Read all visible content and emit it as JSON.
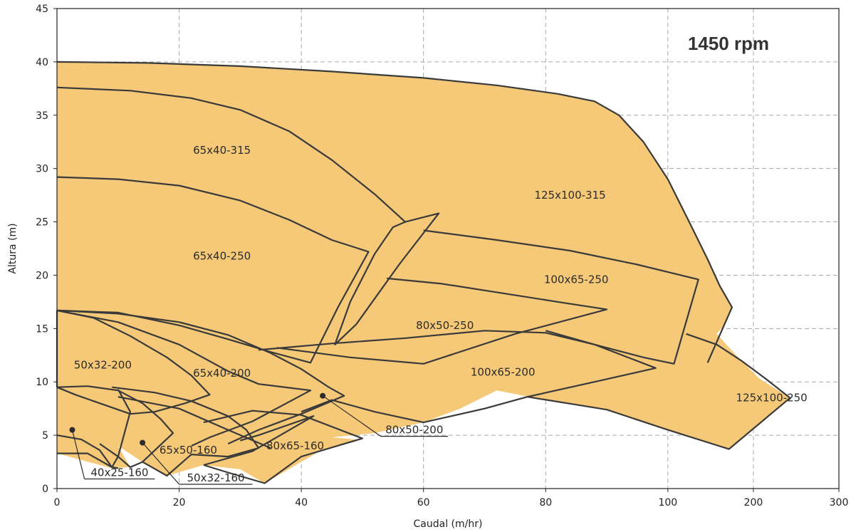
{
  "chart_data": {
    "type": "area",
    "annotation": "1450 rpm",
    "xlabel": "Caudal (m/hr)",
    "ylabel": "Altura (m)",
    "ylim": [
      0,
      45
    ],
    "yticks": [
      "0",
      "5",
      "10",
      "15",
      "20",
      "25",
      "30",
      "35",
      "40",
      "45"
    ],
    "xticks": [
      "0",
      "20",
      "40",
      "60",
      "80",
      "100",
      "200",
      "300"
    ],
    "xtick_positions": [
      0,
      20,
      40,
      60,
      80,
      100,
      114,
      128
    ],
    "xlim_linear": [
      0,
      128
    ],
    "grid": true,
    "colors": {
      "fill": "#f5c977",
      "stroke": "#3a3a3a",
      "grid": "#a8a8a8"
    },
    "regions": [
      {
        "name": "125x100-315",
        "points": [
          [
            0,
            40
          ],
          [
            20,
            39.8
          ],
          [
            40,
            39.3
          ],
          [
            60,
            38.5
          ],
          [
            80,
            37.5
          ],
          [
            90,
            36.5
          ],
          [
            94,
            35
          ],
          [
            100,
            31
          ],
          [
            104,
            26
          ],
          [
            108,
            21
          ],
          [
            110.5,
            17
          ],
          [
            106.5,
            11.8
          ],
          [
            109,
            14
          ],
          [
            111,
            17
          ],
          [
            104,
            26
          ],
          [
            96,
            29.5
          ],
          [
            92,
            31
          ],
          [
            0,
            0
          ]
        ]
      }
    ],
    "series": [
      {
        "name": "125x100-315",
        "points": [
          [
            0,
            40
          ],
          [
            30,
            39.6
          ],
          [
            60,
            38.5
          ],
          [
            80,
            37.2
          ],
          [
            88,
            36.2
          ],
          [
            92,
            34
          ],
          [
            97,
            30.5
          ],
          [
            102,
            25
          ],
          [
            106,
            20
          ],
          [
            110.5,
            17
          ],
          [
            106.5,
            11.8
          ],
          [
            103,
            13
          ],
          [
            98,
            14.8
          ],
          [
            97,
            13
          ],
          [
            101,
            11.7
          ],
          [
            106,
            16.5
          ],
          [
            91.5,
            30
          ],
          [
            95,
            27
          ],
          [
            60,
            28
          ],
          [
            60,
            24
          ],
          [
            52,
            21
          ],
          [
            48,
            18
          ],
          [
            43,
            13.5
          ],
          [
            46,
            18
          ],
          [
            52,
            21
          ],
          [
            60,
            25.8
          ],
          [
            63,
            25.8
          ],
          [
            56,
            26
          ],
          [
            60,
            24
          ],
          [
            52,
            19.7
          ],
          [
            60,
            24
          ],
          [
            64,
            27
          ],
          [
            60,
            26
          ],
          [
            0,
            40
          ]
        ]
      },
      {
        "name": "125x100-250",
        "points": [
          [
            78,
            8.5
          ],
          [
            88,
            10
          ],
          [
            95,
            11.5
          ],
          [
            101,
            13
          ],
          [
            105,
            15
          ],
          [
            108,
            14
          ],
          [
            111,
            12
          ],
          [
            120,
            8.5
          ],
          [
            110,
            3.7
          ],
          [
            103,
            5.5
          ],
          [
            94,
            7.5
          ],
          [
            86,
            8.5
          ],
          [
            78,
            8.5
          ]
        ]
      },
      {
        "name": "100x65-250",
        "points": [
          [
            60,
            24.2
          ],
          [
            80,
            22.7
          ],
          [
            95,
            21.2
          ],
          [
            105,
            19.6
          ],
          [
            101,
            11.7
          ],
          [
            90,
            13
          ],
          [
            80,
            14.8
          ],
          [
            70,
            17.5
          ],
          [
            60,
            19.5
          ],
          [
            54,
            20
          ],
          [
            60,
            24.2
          ]
        ]
      },
      {
        "name": "100x65-200",
        "points": [
          [
            33,
            13
          ],
          [
            50,
            13.5
          ],
          [
            70,
            14.2
          ],
          [
            86,
            13.5
          ],
          [
            98,
            11.3
          ],
          [
            86,
            9.5
          ],
          [
            77,
            8.6
          ],
          [
            70,
            7.5
          ],
          [
            60,
            6.3
          ],
          [
            50,
            7.5
          ],
          [
            40,
            8.8
          ],
          [
            36,
            11.5
          ],
          [
            33,
            13
          ]
        ]
      },
      {
        "name": "80x50-250",
        "points": [
          [
            54,
            19.7
          ],
          [
            70,
            18.8
          ],
          [
            90,
            16.8
          ],
          [
            75,
            14.5
          ],
          [
            60,
            11.7
          ],
          [
            50,
            12.5
          ],
          [
            43,
            13.2
          ],
          [
            48,
            16
          ],
          [
            54,
            19.7
          ]
        ]
      },
      {
        "name": "65x40-315",
        "points": [
          [
            0,
            37.6
          ],
          [
            20,
            36.8
          ],
          [
            35,
            34.5
          ],
          [
            45,
            31
          ],
          [
            55,
            26.5
          ],
          [
            62,
            25.8
          ],
          [
            56,
            21
          ],
          [
            49,
            16
          ],
          [
            45,
            13.5
          ],
          [
            52,
            22
          ],
          [
            45,
            26
          ],
          [
            30,
            28.3
          ],
          [
            0,
            29.2
          ],
          [
            0,
            37.6
          ]
        ]
      },
      {
        "name": "65x40-250",
        "points": [
          [
            0,
            29.2
          ],
          [
            20,
            28.5
          ],
          [
            35,
            26.2
          ],
          [
            45,
            23.5
          ],
          [
            51,
            22.2
          ],
          [
            46,
            17
          ],
          [
            41.5,
            11.8
          ],
          [
            35,
            12.8
          ],
          [
            25,
            14.5
          ],
          [
            10,
            16.7
          ],
          [
            0,
            16.7
          ],
          [
            0,
            29.2
          ]
        ]
      },
      {
        "name": "65x40-200",
        "points": [
          [
            0,
            16.7
          ],
          [
            15,
            16.2
          ],
          [
            28,
            14.5
          ],
          [
            38,
            12
          ],
          [
            43,
            10.5
          ],
          [
            47,
            8.7
          ],
          [
            40,
            6.5
          ],
          [
            33,
            5
          ],
          [
            28,
            3.7
          ],
          [
            30,
            4.5
          ],
          [
            24,
            2.8
          ],
          [
            22,
            3
          ],
          [
            10,
            6
          ],
          [
            3,
            9.5
          ],
          [
            0,
            16.7
          ]
        ]
      },
      {
        "name": "80x65-160",
        "points": [
          [
            25,
            6
          ],
          [
            35,
            7.2
          ],
          [
            44,
            6.9
          ],
          [
            49,
            4.5
          ],
          [
            40,
            3
          ],
          [
            33,
            0.5
          ],
          [
            24,
            2.2
          ],
          [
            18,
            3
          ],
          [
            25,
            6
          ]
        ]
      },
      {
        "name": "65x50-160",
        "points": [
          [
            10,
            9.5
          ],
          [
            20,
            8.6
          ],
          [
            32,
            7
          ],
          [
            42,
            6.8
          ],
          [
            35,
            3.5
          ],
          [
            28,
            2.8
          ],
          [
            22,
            3
          ],
          [
            18,
            1.3
          ],
          [
            14,
            2.5
          ],
          [
            10,
            4
          ],
          [
            8,
            6
          ],
          [
            10,
            9.5
          ]
        ]
      },
      {
        "name": "50x32-200",
        "points": [
          [
            0,
            16.7
          ],
          [
            10,
            15.5
          ],
          [
            20,
            13
          ],
          [
            25,
            11
          ],
          [
            23,
            8.7
          ],
          [
            20,
            6.5
          ],
          [
            15,
            6
          ],
          [
            10,
            6.8
          ],
          [
            5,
            8
          ],
          [
            0,
            9.5
          ],
          [
            0,
            16.7
          ]
        ]
      },
      {
        "name": "50x32-160",
        "points": [
          [
            0,
            9.5
          ],
          [
            8,
            9
          ],
          [
            14,
            7
          ],
          [
            18,
            5.2
          ],
          [
            16,
            3.5
          ],
          [
            13,
            2
          ],
          [
            10,
            3
          ],
          [
            7,
            4.5
          ],
          [
            0,
            5
          ],
          [
            0,
            9.5
          ]
        ]
      },
      {
        "name": "40x25-160",
        "points": [
          [
            0,
            5
          ],
          [
            6,
            4.5
          ],
          [
            10,
            4
          ],
          [
            12,
            3
          ],
          [
            11,
            2
          ],
          [
            10,
            3
          ],
          [
            8,
            3.2
          ],
          [
            0,
            3.3
          ],
          [
            0,
            5
          ]
        ]
      }
    ],
    "region_labels": [
      {
        "text": "65x40-315",
        "x": 27,
        "y": 31.7
      },
      {
        "text": "125x100-315",
        "x": 84,
        "y": 27.5
      },
      {
        "text": "65x40-250",
        "x": 27,
        "y": 21.8
      },
      {
        "text": "100x65-250",
        "x": 85,
        "y": 19.6
      },
      {
        "text": "80x50-250",
        "x": 63.5,
        "y": 15.3
      },
      {
        "text": "50x32-200",
        "x": 7.5,
        "y": 11.6
      },
      {
        "text": "65x40-200",
        "x": 27,
        "y": 10.8
      },
      {
        "text": "100x65-200",
        "x": 73,
        "y": 10.9
      },
      {
        "text": "125x100-250",
        "x": 117,
        "y": 8.5
      },
      {
        "text": "80x65-160",
        "x": 39,
        "y": 4
      },
      {
        "text": "65x50-160",
        "x": 21.5,
        "y": 3.6
      }
    ],
    "callouts": [
      {
        "text": "80x50-200",
        "point": [
          43.5,
          8.7
        ],
        "elbow": [
          53,
          4.9
        ],
        "end": [
          64,
          4.9
        ]
      },
      {
        "text": "40x25-160",
        "point": [
          2.5,
          5.5
        ],
        "elbow": [
          4.5,
          0.9
        ],
        "end": [
          16,
          0.9
        ]
      },
      {
        "text": "50x32-160",
        "point": [
          14,
          4.3
        ],
        "elbow": [
          20,
          0.4
        ],
        "end": [
          32,
          0.4
        ]
      }
    ]
  }
}
